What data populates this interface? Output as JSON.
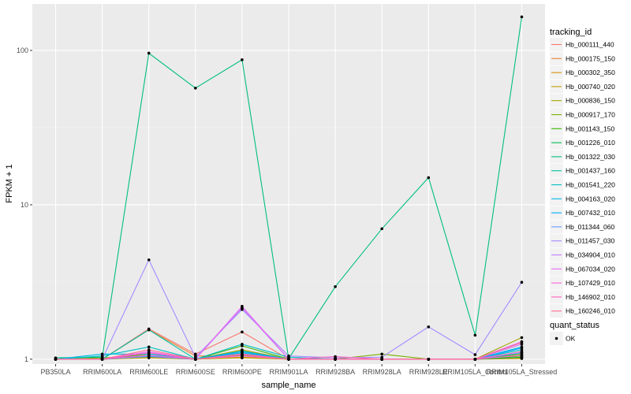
{
  "chart_data": {
    "type": "line",
    "title": "",
    "xlabel": "sample_name",
    "ylabel": "FPKM + 1",
    "y_scale": "log10",
    "ylim": [
      0.93,
      200
    ],
    "y_ticks": [
      1,
      10,
      100
    ],
    "y_tick_labels": [
      "1",
      "10",
      "100"
    ],
    "categories": [
      "PB350LA",
      "RRIM600LA",
      "RRIM600LE",
      "RRIM600SE",
      "RRIM600PE",
      "RRIM901LA",
      "RRIM928BA",
      "RRIM928LA",
      "RRIM928LE",
      "RRIM105LA_Control",
      "RRIM105LA_Stressed"
    ],
    "legend_title": "tracking_id",
    "series": [
      {
        "name": "Hb_000111_440",
        "color": "#F8766D",
        "values": [
          1.0,
          1.0,
          1.57,
          1.08,
          1.5,
          1.0,
          1.0,
          1.0,
          1.0,
          1.0,
          1.02
        ]
      },
      {
        "name": "Hb_000175_150",
        "color": "#EA8331",
        "values": [
          1.0,
          1.0,
          1.55,
          1.05,
          1.05,
          1.0,
          1.0,
          1.0,
          1.0,
          1.0,
          1.05
        ]
      },
      {
        "name": "Hb_000302_350",
        "color": "#D89000",
        "values": [
          1.0,
          1.0,
          1.03,
          1.0,
          1.03,
          1.0,
          1.0,
          1.0,
          1.0,
          1.0,
          1.02
        ]
      },
      {
        "name": "Hb_000740_020",
        "color": "#C09B00",
        "values": [
          1.0,
          1.0,
          1.02,
          1.0,
          1.02,
          1.0,
          1.0,
          1.0,
          1.0,
          1.0,
          1.01
        ]
      },
      {
        "name": "Hb_000836_150",
        "color": "#A3A500",
        "values": [
          1.0,
          1.0,
          1.05,
          1.0,
          1.15,
          1.0,
          1.0,
          1.0,
          1.0,
          1.0,
          1.38
        ]
      },
      {
        "name": "Hb_000917_170",
        "color": "#7CAE00",
        "values": [
          1.0,
          1.02,
          1.05,
          1.0,
          1.1,
          1.0,
          1.0,
          1.08,
          1.0,
          1.0,
          1.05
        ]
      },
      {
        "name": "Hb_001143_150",
        "color": "#39B600",
        "values": [
          1.0,
          1.0,
          1.08,
          1.0,
          1.22,
          1.0,
          1.0,
          1.0,
          1.0,
          1.0,
          1.08
        ]
      },
      {
        "name": "Hb_001226_010",
        "color": "#00BB4E",
        "values": [
          1.0,
          1.0,
          1.04,
          1.0,
          1.06,
          1.0,
          1.0,
          1.0,
          1.0,
          1.0,
          1.03
        ]
      },
      {
        "name": "Hb_001322_030",
        "color": "#00BF7D",
        "values": [
          1.02,
          1.03,
          96,
          57,
          87,
          1.01,
          2.95,
          7.0,
          15,
          1.43,
          165
        ]
      },
      {
        "name": "Hb_001437_160",
        "color": "#00C1A3",
        "values": [
          1.0,
          1.0,
          1.55,
          1.0,
          1.13,
          1.0,
          1.0,
          1.0,
          1.0,
          1.0,
          1.1
        ]
      },
      {
        "name": "Hb_001541_220",
        "color": "#00BFC4",
        "values": [
          1.0,
          1.05,
          1.2,
          1.0,
          1.25,
          1.03,
          1.0,
          1.0,
          1.0,
          1.0,
          1.15
        ]
      },
      {
        "name": "Hb_004163_020",
        "color": "#00B8E7",
        "values": [
          1.0,
          1.08,
          1.08,
          1.0,
          1.1,
          1.0,
          1.0,
          1.0,
          1.0,
          1.0,
          1.2
        ]
      },
      {
        "name": "Hb_007432_010",
        "color": "#00A9FF",
        "values": [
          1.0,
          1.0,
          1.05,
          1.0,
          1.12,
          1.0,
          1.0,
          1.0,
          1.0,
          1.0,
          1.18
        ]
      },
      {
        "name": "Hb_011344_060",
        "color": "#619CFF",
        "values": [
          1.0,
          1.0,
          1.04,
          1.0,
          1.08,
          1.0,
          1.0,
          1.0,
          1.0,
          1.0,
          1.1
        ]
      },
      {
        "name": "Hb_011457_030",
        "color": "#A58AFF",
        "values": [
          1.0,
          1.0,
          4.4,
          1.03,
          2.1,
          1.05,
          1.02,
          1.03,
          1.62,
          1.07,
          3.15
        ]
      },
      {
        "name": "Hb_034904_010",
        "color": "#C77CFF",
        "values": [
          1.0,
          1.0,
          1.1,
          1.0,
          2.15,
          1.0,
          1.0,
          1.0,
          1.0,
          1.0,
          1.25
        ]
      },
      {
        "name": "Hb_067034_020",
        "color": "#E76BF3",
        "values": [
          1.0,
          1.0,
          1.12,
          1.0,
          2.2,
          1.0,
          1.0,
          1.0,
          1.0,
          1.0,
          1.3
        ]
      },
      {
        "name": "Hb_107429_010",
        "color": "#FA62DB",
        "values": [
          1.0,
          1.0,
          1.06,
          1.0,
          1.05,
          1.0,
          1.0,
          1.0,
          1.0,
          1.0,
          1.06
        ]
      },
      {
        "name": "Hb_146902_010",
        "color": "#FF62BC",
        "values": [
          1.0,
          1.0,
          1.1,
          1.0,
          1.08,
          1.0,
          1.04,
          1.0,
          1.0,
          1.0,
          1.12
        ]
      },
      {
        "name": "Hb_160246_010",
        "color": "#FF6C91",
        "values": [
          1.0,
          1.0,
          1.15,
          1.0,
          1.07,
          1.0,
          1.0,
          1.0,
          1.0,
          1.0,
          1.28
        ]
      }
    ],
    "point_legend_title": "quant_status",
    "point_legend_label": "OK",
    "grid": true,
    "legend_position": "right"
  }
}
